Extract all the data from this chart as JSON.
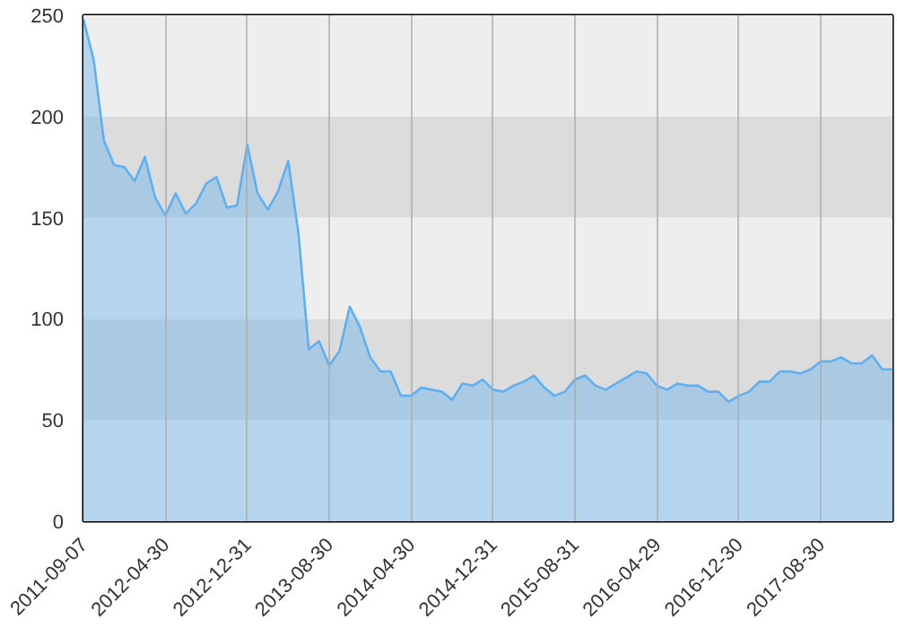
{
  "chart_data": {
    "type": "area",
    "categories": [
      "2011-09-07",
      null,
      null,
      null,
      null,
      null,
      null,
      null,
      "2012-04-30",
      null,
      null,
      null,
      null,
      null,
      null,
      null,
      "2012-12-31",
      null,
      null,
      null,
      null,
      null,
      null,
      null,
      "2013-08-30",
      null,
      null,
      null,
      null,
      null,
      null,
      null,
      "2014-04-30",
      null,
      null,
      null,
      null,
      null,
      null,
      null,
      "2014-12-31",
      null,
      null,
      null,
      null,
      null,
      null,
      null,
      "2015-08-31",
      null,
      null,
      null,
      null,
      null,
      null,
      null,
      "2016-04-29",
      null,
      null,
      null,
      null,
      null,
      null,
      null,
      "2016-12-30",
      null,
      null,
      null,
      null,
      null,
      null,
      null,
      "2017-08-30",
      null,
      null,
      null,
      null,
      null,
      null,
      null
    ],
    "series": [
      {
        "color": "#5fb0f0",
        "values": [
          248,
          228,
          188,
          176,
          175,
          168,
          180,
          160,
          151,
          162,
          152,
          157,
          167,
          170,
          155,
          156,
          186,
          162,
          154,
          163,
          178,
          142,
          85,
          89,
          77,
          84,
          106,
          96,
          81,
          74,
          74,
          62,
          62,
          66,
          65,
          64,
          60,
          68,
          67,
          70,
          65,
          64,
          67,
          69,
          72,
          66,
          62,
          64,
          70,
          72,
          67,
          65,
          68,
          71,
          74,
          73,
          67,
          65,
          68,
          67,
          67,
          64,
          64,
          59,
          62,
          64,
          69,
          69,
          74,
          74,
          73,
          75,
          79,
          79,
          81,
          78,
          78,
          82,
          75,
          75
        ]
      }
    ],
    "ylim": [
      0,
      250
    ],
    "yticks": [
      0,
      50,
      100,
      150,
      200,
      250
    ],
    "grid": "x",
    "line_style": "solid",
    "bands": [
      {
        "axis": "y",
        "from": 0,
        "to": 50,
        "color": "#eeeeee"
      },
      {
        "axis": "y",
        "from": 50,
        "to": 100,
        "color": "#dcdcdc"
      },
      {
        "axis": "y",
        "from": 100,
        "to": 150,
        "color": "#eeeeee"
      },
      {
        "axis": "y",
        "from": 150,
        "to": 200,
        "color": "#dcdcdc"
      },
      {
        "axis": "y",
        "from": 200,
        "to": 250,
        "color": "#eeeeee"
      }
    ]
  }
}
